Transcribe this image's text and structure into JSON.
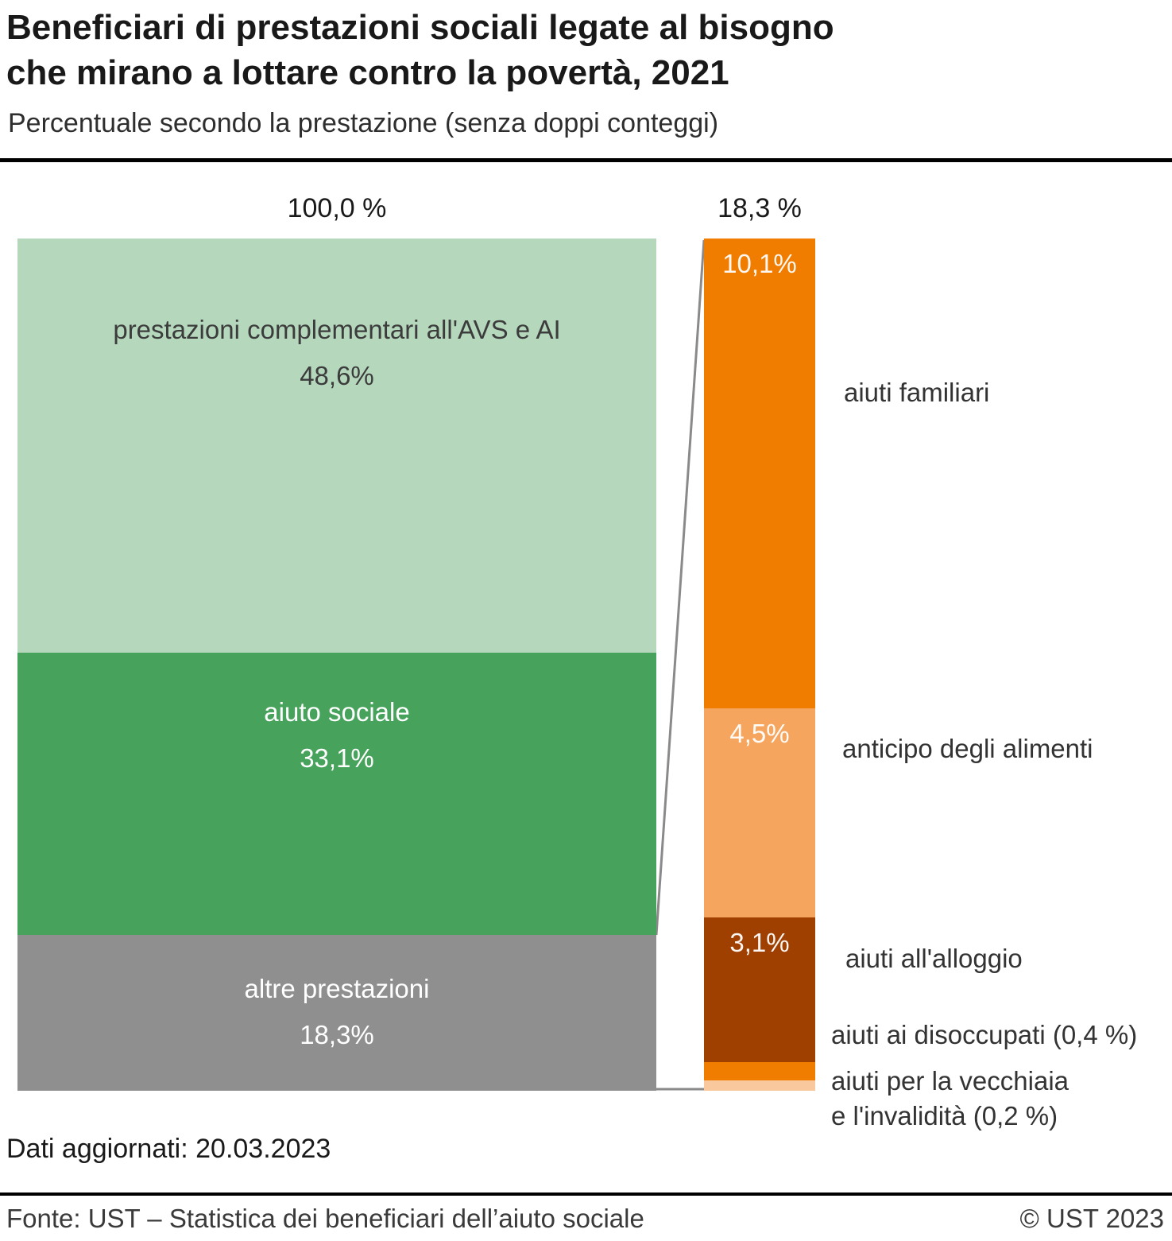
{
  "header": {
    "title_line1": "Beneficiari di prestazioni sociali legate al bisogno",
    "title_line2": "che mirano a lottare contro la povertà, 2021",
    "subtitle": "Percentuale secondo la prestazione (senza doppi conteggi)"
  },
  "chart_data": {
    "type": "bar",
    "variant": "stacked-bar-with-breakout",
    "unit": "%",
    "connector_color": "#8a8a8a",
    "left_bar": {
      "total_label": "100,0 %",
      "total": 100.0,
      "segments": [
        {
          "label": "prestazioni complementari all'AVS e AI",
          "value": 48.6,
          "value_label": "48,6%",
          "color": "#b5d8bd"
        },
        {
          "label": "aiuto sociale",
          "value": 33.1,
          "value_label": "33,1%",
          "color": "#47a35c"
        },
        {
          "label": "altre prestazioni",
          "value": 18.3,
          "value_label": "18,3%",
          "color": "#8f8f8f"
        }
      ]
    },
    "right_bar": {
      "total_label": "18,3 %",
      "total": 18.3,
      "segments": [
        {
          "label": "aiuti familiari",
          "value": 10.1,
          "value_label": "10,1%",
          "color": "#f07d00"
        },
        {
          "label": "anticipo degli alimenti",
          "value": 4.5,
          "value_label": "4,5%",
          "color": "#f6a55e"
        },
        {
          "label": "aiuti all'alloggio",
          "value": 3.1,
          "value_label": "3,1%",
          "color": "#a04000"
        },
        {
          "label": "aiuti ai disoccupati (0,4 %)",
          "value": 0.4,
          "value_label": "",
          "color": "#f07d00"
        },
        {
          "label": "aiuti per la vecchiaia\ne l'invalidità (0,2 %)",
          "value": 0.2,
          "value_label": "",
          "color": "#f9c89c"
        }
      ]
    }
  },
  "footer": {
    "updated": "Dati aggiornati: 20.03.2023",
    "source": "Fonte: UST – Statistica dei beneficiari dell’aiuto sociale",
    "copyright": "© UST 2023"
  }
}
